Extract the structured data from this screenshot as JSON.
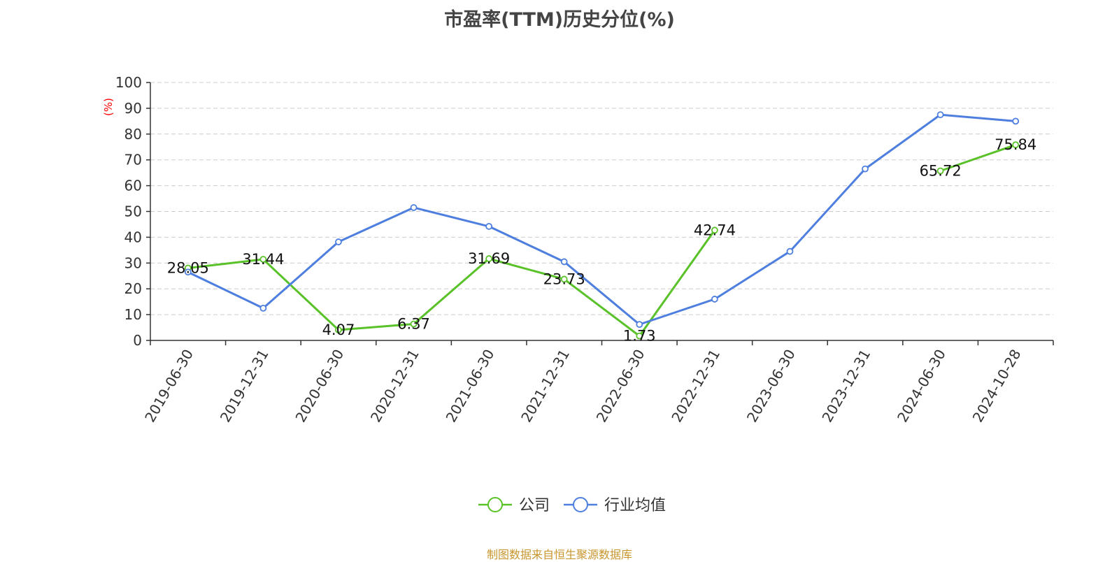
{
  "title": "市盈率(TTM)历史分位(%)",
  "source_note": "制图数据来自恒生聚源数据库",
  "chart_data": {
    "type": "line",
    "title": "市盈率(TTM)历史分位(%)",
    "ylabel": "(%)",
    "ylim": [
      0,
      100
    ],
    "yticks": [
      0,
      10,
      20,
      30,
      40,
      50,
      60,
      70,
      80,
      90,
      100
    ],
    "grid": true,
    "legend_position": "bottom",
    "categories": [
      "2019-06-30",
      "2019-12-31",
      "2020-06-30",
      "2020-12-31",
      "2021-06-30",
      "2021-12-31",
      "2022-06-30",
      "2022-12-31",
      "2023-06-30",
      "2023-12-31",
      "2024-06-30",
      "2024-10-28"
    ],
    "series": [
      {
        "name": "公司",
        "color": "#5ac229",
        "values": [
          28.05,
          31.44,
          4.07,
          6.37,
          31.69,
          23.73,
          1.73,
          42.74,
          null,
          null,
          65.72,
          75.84
        ],
        "labels": [
          "28.05",
          "31.44",
          "4.07",
          "6.37",
          "31.69",
          "23.73",
          "1.73",
          "42.74",
          null,
          null,
          "65.72",
          "75.84"
        ]
      },
      {
        "name": "行业均值",
        "color": "#4e7fdf",
        "values": [
          26.5,
          12.5,
          38.2,
          51.5,
          44.2,
          30.5,
          6.2,
          16.0,
          34.5,
          66.5,
          87.5,
          85.0
        ]
      }
    ]
  },
  "colors": {
    "axis": "#333333",
    "grid": "#cccccc",
    "ylabel": "#ff0000",
    "source": "#c8962e"
  }
}
